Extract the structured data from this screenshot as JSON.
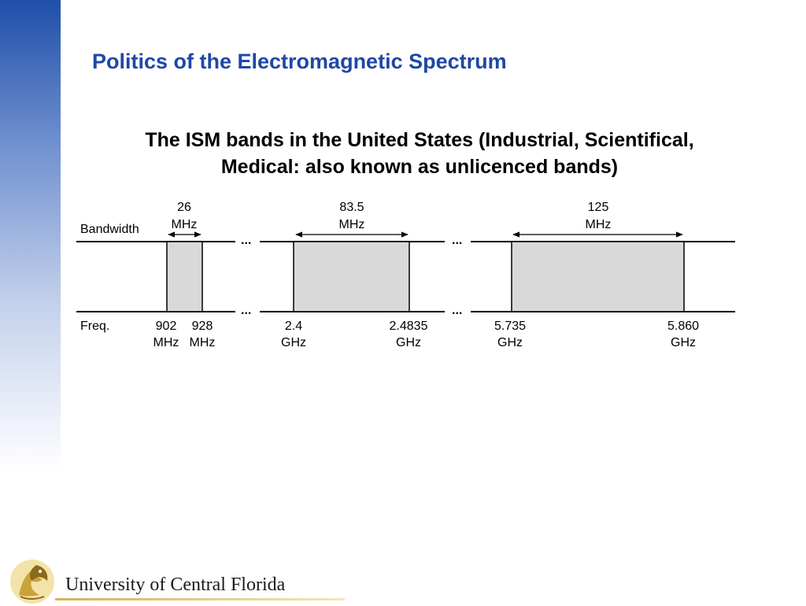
{
  "slide": {
    "title": "Politics of the Electromagnetic Spectrum",
    "subtitle_line1": "The ISM bands in the United States (Industrial, Scientifical,",
    "subtitle_line2": "Medical: also known as unlicenced bands)"
  },
  "diagram": {
    "bandwidth_label": "Bandwidth",
    "freq_label": "Freq.",
    "ellipsis": "...",
    "fill_color": "#d9d9d9",
    "bands": [
      {
        "bandwidth_value": "26",
        "bandwidth_unit": "MHz",
        "low_value": "902",
        "low_unit": "MHz",
        "high_value": "928",
        "high_unit": "MHz"
      },
      {
        "bandwidth_value": "83.5",
        "bandwidth_unit": "MHz",
        "low_value": "2.4",
        "low_unit": "GHz",
        "high_value": "2.4835",
        "high_unit": "GHz"
      },
      {
        "bandwidth_value": "125",
        "bandwidth_unit": "MHz",
        "low_value": "5.735",
        "low_unit": "GHz",
        "high_value": "5.860",
        "high_unit": "GHz"
      }
    ]
  },
  "footer": {
    "university_name": "University of Central Florida"
  },
  "colors": {
    "title": "#1f47a5",
    "sidebar": "#1f4fa8",
    "logo_gold": "#d4b256"
  }
}
